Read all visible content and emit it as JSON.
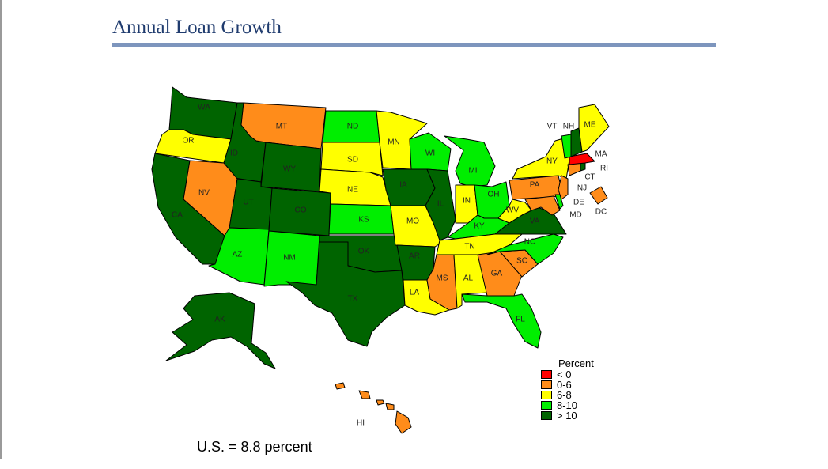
{
  "title": "Annual Loan Growth",
  "footnote": "U.S. = 8.8 percent",
  "legend": {
    "title": "Percent",
    "items": [
      {
        "label": "< 0",
        "color": "#ff0000"
      },
      {
        "label": "0-6",
        "color": "#ff8c1a"
      },
      {
        "label": "6-8",
        "color": "#ffff00"
      },
      {
        "label": "8-10",
        "color": "#00ee00"
      },
      {
        "label": "> 10",
        "color": "#006400"
      }
    ]
  },
  "states": {
    "WA": {
      "label": "WA",
      "bin": 4
    },
    "OR": {
      "label": "OR",
      "bin": 2
    },
    "CA": {
      "label": "CA",
      "bin": 4
    },
    "ID": {
      "label": "ID",
      "bin": 4
    },
    "NV": {
      "label": "NV",
      "bin": 1
    },
    "MT": {
      "label": "MT",
      "bin": 1
    },
    "WY": {
      "label": "WY",
      "bin": 4
    },
    "UT": {
      "label": "UT",
      "bin": 4
    },
    "AZ": {
      "label": "AZ",
      "bin": 3
    },
    "CO": {
      "label": "CO",
      "bin": 4
    },
    "NM": {
      "label": "NM",
      "bin": 3
    },
    "ND": {
      "label": "ND",
      "bin": 3
    },
    "SD": {
      "label": "SD",
      "bin": 2
    },
    "NE": {
      "label": "NE",
      "bin": 2
    },
    "KS": {
      "label": "KS",
      "bin": 3
    },
    "OK": {
      "label": "OK",
      "bin": 4
    },
    "TX": {
      "label": "TX",
      "bin": 4
    },
    "MN": {
      "label": "MN",
      "bin": 2
    },
    "IA": {
      "label": "IA",
      "bin": 4
    },
    "MO": {
      "label": "MO",
      "bin": 2
    },
    "AR": {
      "label": "AR",
      "bin": 4
    },
    "LA": {
      "label": "LA",
      "bin": 2
    },
    "WI": {
      "label": "WI",
      "bin": 3
    },
    "IL": {
      "label": "IL",
      "bin": 4
    },
    "MI": {
      "label": "MI",
      "bin": 3
    },
    "IN": {
      "label": "IN",
      "bin": 2
    },
    "OH": {
      "label": "OH",
      "bin": 3
    },
    "KY": {
      "label": "KY",
      "bin": 3
    },
    "TN": {
      "label": "TN",
      "bin": 2
    },
    "MS": {
      "label": "MS",
      "bin": 1
    },
    "AL": {
      "label": "AL",
      "bin": 2
    },
    "GA": {
      "label": "GA",
      "bin": 1
    },
    "FL": {
      "label": "FL",
      "bin": 3
    },
    "SC": {
      "label": "SC",
      "bin": 1
    },
    "NC": {
      "label": "NC",
      "bin": 3
    },
    "VA": {
      "label": "VA",
      "bin": 4
    },
    "WV": {
      "label": "WV",
      "bin": 2
    },
    "PA": {
      "label": "PA",
      "bin": 1
    },
    "NY": {
      "label": "NY",
      "bin": 2
    },
    "VT": {
      "label": "VT",
      "bin": 3
    },
    "NH": {
      "label": "NH",
      "bin": 4
    },
    "ME": {
      "label": "ME",
      "bin": 2
    },
    "MA": {
      "label": "MA",
      "bin": 0
    },
    "RI": {
      "label": "RI",
      "bin": 4
    },
    "CT": {
      "label": "CT",
      "bin": 1
    },
    "NJ": {
      "label": "NJ",
      "bin": 1
    },
    "DE": {
      "label": "DE",
      "bin": 3
    },
    "MD": {
      "label": "MD",
      "bin": 1
    },
    "DC": {
      "label": "DC",
      "bin": 1
    },
    "AK": {
      "label": "AK",
      "bin": 4
    },
    "HI": {
      "label": "HI",
      "bin": 1
    }
  }
}
